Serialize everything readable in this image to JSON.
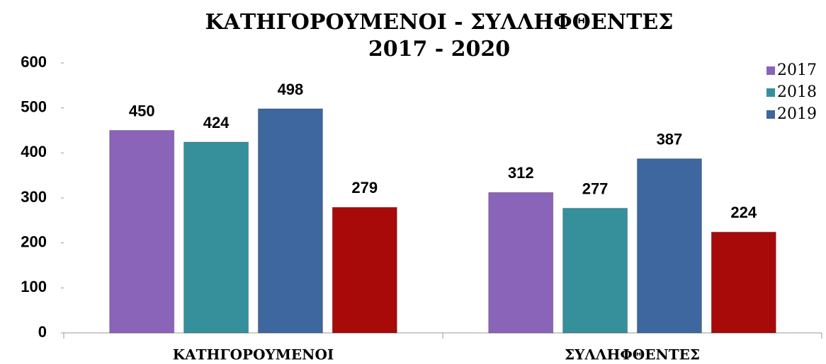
{
  "chart_data": {
    "type": "bar",
    "title": [
      "ΚΑΤΗΓΟΡΟΥΜΕΝΟΙ - ΣΥΛΛΗΦΘΕΝΤΕΣ",
      "2017 - 2020"
    ],
    "categories": [
      "ΚΑΤΗΓΟΡΟΥΜΕΝΟΙ",
      "ΣΥΛΛΗΦΘΕΝΤΕΣ"
    ],
    "series": [
      {
        "name": "2017",
        "color": "#8a64b8",
        "values": [
          450,
          312
        ]
      },
      {
        "name": "2018",
        "color": "#35909c",
        "values": [
          424,
          277
        ]
      },
      {
        "name": "2019",
        "color": "#3d679e",
        "values": [
          498,
          387
        ]
      },
      {
        "color": "#a80a0a",
        "values": [
          279,
          224
        ]
      }
    ],
    "ylim": [
      0,
      600
    ],
    "yticks": [
      0,
      100,
      200,
      300,
      400,
      500,
      600
    ],
    "legend": "top-right"
  }
}
